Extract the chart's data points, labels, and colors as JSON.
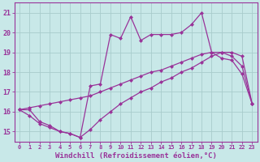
{
  "bg_color": "#c8e8e8",
  "grid_color": "#a8cccc",
  "line_color": "#993399",
  "xlabel": "Windchill (Refroidissement éolien,°C)",
  "xlim": [
    -0.5,
    23.5
  ],
  "ylim": [
    14.5,
    21.5
  ],
  "yticks": [
    15,
    16,
    17,
    18,
    19,
    20,
    21
  ],
  "xticks": [
    0,
    1,
    2,
    3,
    4,
    5,
    6,
    7,
    8,
    9,
    10,
    11,
    12,
    13,
    14,
    15,
    16,
    17,
    18,
    19,
    20,
    21,
    22,
    23
  ],
  "line_top_x": [
    0,
    1,
    2,
    3,
    4,
    5,
    6,
    7,
    8,
    9,
    10,
    11,
    12,
    13,
    14,
    15,
    16,
    17,
    18,
    19,
    20,
    21,
    22,
    23
  ],
  "line_top_y": [
    16.1,
    16.1,
    15.5,
    15.3,
    15.0,
    14.9,
    14.7,
    17.3,
    17.4,
    19.9,
    19.7,
    20.8,
    19.6,
    19.9,
    19.9,
    19.9,
    20.0,
    20.4,
    21.0,
    19.0,
    18.7,
    18.6,
    17.9,
    16.4
  ],
  "line_mid_x": [
    0,
    1,
    2,
    3,
    4,
    5,
    6,
    7,
    8,
    9,
    10,
    11,
    12,
    13,
    14,
    15,
    16,
    17,
    18,
    19,
    20,
    21,
    22,
    23
  ],
  "line_mid_y": [
    16.1,
    16.2,
    16.3,
    16.4,
    16.5,
    16.6,
    16.7,
    16.8,
    17.0,
    17.2,
    17.4,
    17.6,
    17.8,
    18.0,
    18.1,
    18.3,
    18.5,
    18.7,
    18.9,
    19.0,
    19.0,
    18.8,
    18.3,
    16.4
  ],
  "line_bot_x": [
    0,
    1,
    2,
    3,
    4,
    5,
    6,
    7,
    8,
    9,
    10,
    11,
    12,
    13,
    14,
    15,
    16,
    17,
    18,
    19,
    20,
    21,
    22,
    23
  ],
  "line_bot_y": [
    16.1,
    15.8,
    15.4,
    15.2,
    15.0,
    14.9,
    14.7,
    15.1,
    15.6,
    16.0,
    16.4,
    16.7,
    17.0,
    17.2,
    17.5,
    17.7,
    18.0,
    18.2,
    18.5,
    18.8,
    19.0,
    19.0,
    18.8,
    16.4
  ]
}
